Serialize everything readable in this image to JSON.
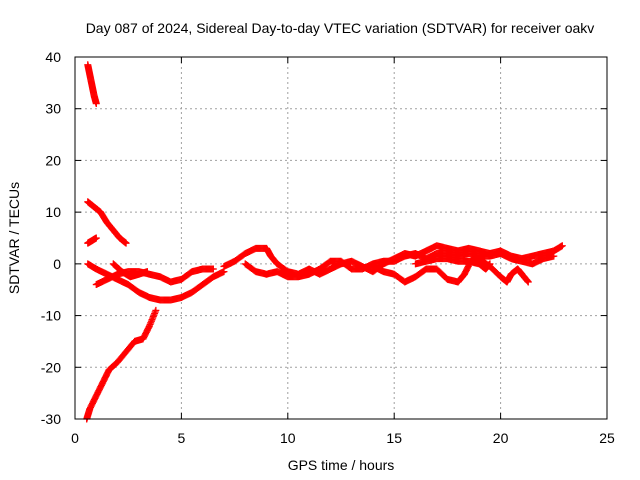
{
  "chart_data": {
    "type": "scatter",
    "title": "Day 087 of 2024, Sidereal Day-to-day VTEC variation (SDTVAR) for receiver oakv",
    "xlabel": "GPS time / hours",
    "ylabel": "SDTVAR / TECUs",
    "xlim": [
      0,
      25
    ],
    "ylim": [
      -30,
      40
    ],
    "xticks": [
      0,
      5,
      10,
      15,
      20,
      25
    ],
    "yticks": [
      -30,
      -20,
      -10,
      0,
      10,
      20,
      30,
      40
    ],
    "xtick_labels": [
      "0",
      "5",
      "10",
      "15",
      "20",
      "25"
    ],
    "ytick_labels": [
      "-30",
      "-20",
      "-10",
      "0",
      "10",
      "20",
      "30",
      "40"
    ],
    "grid": true,
    "marker": "+",
    "color": "#ff0000",
    "series": [
      {
        "name": "arc-high-start",
        "points": [
          [
            0.6,
            38.5
          ],
          [
            0.7,
            36.5
          ],
          [
            0.8,
            34.5
          ],
          [
            0.9,
            32.5
          ],
          [
            1.0,
            31.0
          ]
        ]
      },
      {
        "name": "arc-rising",
        "points": [
          [
            0.55,
            -30
          ],
          [
            0.7,
            -28
          ],
          [
            1.0,
            -25.5
          ],
          [
            1.3,
            -23
          ],
          [
            1.6,
            -20.5
          ],
          [
            2.0,
            -19
          ],
          [
            2.4,
            -17
          ],
          [
            2.8,
            -15
          ],
          [
            3.2,
            -14.5
          ],
          [
            3.5,
            -12
          ],
          [
            3.8,
            -9
          ]
        ]
      },
      {
        "name": "arc-descend-10",
        "points": [
          [
            0.6,
            12
          ],
          [
            0.9,
            11
          ],
          [
            1.2,
            10
          ],
          [
            1.5,
            8
          ],
          [
            1.8,
            6.5
          ],
          [
            2.1,
            5
          ],
          [
            2.4,
            4
          ]
        ]
      },
      {
        "name": "arc-small-4",
        "points": [
          [
            0.6,
            4
          ],
          [
            0.8,
            4.5
          ],
          [
            1.0,
            5
          ]
        ]
      },
      {
        "name": "arc-low-dip",
        "points": [
          [
            0.6,
            0
          ],
          [
            1.0,
            -1
          ],
          [
            1.5,
            -2
          ],
          [
            2.0,
            -3
          ],
          [
            2.5,
            -4
          ],
          [
            3.0,
            -5.5
          ],
          [
            3.5,
            -6.5
          ],
          [
            4.0,
            -7
          ],
          [
            4.5,
            -7
          ],
          [
            5.0,
            -6.5
          ],
          [
            5.5,
            -5.5
          ],
          [
            6.0,
            -4
          ],
          [
            6.5,
            -2.5
          ],
          [
            7.0,
            -1.5
          ]
        ]
      },
      {
        "name": "arc-mid",
        "points": [
          [
            1.0,
            -4
          ],
          [
            1.5,
            -3
          ],
          [
            2.0,
            -2
          ],
          [
            2.5,
            -1.5
          ],
          [
            3.0,
            -1.5
          ],
          [
            3.5,
            -2
          ],
          [
            4.0,
            -2.5
          ],
          [
            4.5,
            -3.5
          ],
          [
            5.0,
            -3
          ],
          [
            5.5,
            -1.5
          ],
          [
            6.0,
            -1
          ],
          [
            6.5,
            -1
          ]
        ]
      },
      {
        "name": "arc-upper-mid",
        "points": [
          [
            1.8,
            0
          ],
          [
            2.2,
            -1.5
          ],
          [
            2.6,
            -2.5
          ],
          [
            3.0,
            -2
          ],
          [
            3.4,
            -1.5
          ]
        ]
      },
      {
        "name": "arc-day-a",
        "points": [
          [
            7.0,
            -0.5
          ],
          [
            7.5,
            0.5
          ],
          [
            8.0,
            2
          ],
          [
            8.5,
            3
          ],
          [
            9.0,
            3
          ],
          [
            9.2,
            1.5
          ],
          [
            9.5,
            0
          ],
          [
            10.0,
            -1.5
          ],
          [
            10.5,
            -2
          ],
          [
            11.0,
            -1
          ],
          [
            11.5,
            -2
          ],
          [
            12.0,
            -1
          ],
          [
            12.5,
            0
          ],
          [
            13.0,
            0.5
          ],
          [
            13.5,
            -0.5
          ],
          [
            14.0,
            -1.5
          ],
          [
            14.5,
            0
          ],
          [
            15.0,
            1
          ],
          [
            15.5,
            2
          ],
          [
            16.0,
            1.5
          ],
          [
            16.5,
            2.5
          ],
          [
            17.0,
            3.5
          ],
          [
            17.5,
            3
          ],
          [
            18.0,
            2.5
          ],
          [
            18.5,
            3
          ],
          [
            19.0,
            2.5
          ],
          [
            19.5,
            2
          ],
          [
            20.0,
            2.5
          ],
          [
            20.5,
            1.5
          ],
          [
            21.0,
            1
          ],
          [
            21.5,
            1.5
          ],
          [
            22.0,
            2
          ],
          [
            22.5,
            2.5
          ],
          [
            22.9,
            3.5
          ]
        ]
      },
      {
        "name": "arc-day-b",
        "points": [
          [
            8.0,
            0
          ],
          [
            8.5,
            -1.5
          ],
          [
            9.0,
            -2
          ],
          [
            9.5,
            -1.5
          ],
          [
            10.0,
            -2.5
          ],
          [
            10.5,
            -2.5
          ],
          [
            11.0,
            -2
          ],
          [
            11.5,
            -1
          ],
          [
            12.0,
            0.5
          ],
          [
            12.5,
            0.5
          ],
          [
            13.0,
            -1
          ],
          [
            13.5,
            -1
          ],
          [
            14.0,
            0
          ],
          [
            14.5,
            0.5
          ],
          [
            15.0,
            0.5
          ],
          [
            15.5,
            1.5
          ],
          [
            16.0,
            2
          ],
          [
            16.5,
            1
          ],
          [
            17.0,
            2
          ],
          [
            17.5,
            2
          ],
          [
            18.0,
            1.5
          ],
          [
            18.5,
            2
          ],
          [
            19.0,
            1.5
          ],
          [
            19.5,
            1.5
          ],
          [
            20.0,
            2
          ],
          [
            20.5,
            1
          ],
          [
            21.0,
            0.5
          ],
          [
            21.5,
            0
          ],
          [
            22.0,
            1
          ],
          [
            22.5,
            1.5
          ]
        ]
      },
      {
        "name": "arc-day-c",
        "points": [
          [
            14.0,
            -0.5
          ],
          [
            14.5,
            -1.5
          ],
          [
            15.0,
            -2
          ],
          [
            15.5,
            -3.5
          ],
          [
            16.0,
            -2.5
          ],
          [
            16.5,
            -1
          ],
          [
            17.0,
            -1
          ],
          [
            17.5,
            -3
          ],
          [
            18.0,
            -3.5
          ],
          [
            18.3,
            -2
          ],
          [
            18.6,
            0.5
          ],
          [
            19.0,
            1
          ],
          [
            19.5,
            -0.5
          ],
          [
            20.0,
            -2.5
          ],
          [
            20.3,
            -3.5
          ],
          [
            20.5,
            -2
          ],
          [
            20.8,
            -1
          ],
          [
            21.0,
            -2
          ],
          [
            21.3,
            -3.5
          ]
        ]
      },
      {
        "name": "arc-day-d",
        "points": [
          [
            16.0,
            0
          ],
          [
            16.5,
            0.5
          ],
          [
            17.0,
            1
          ],
          [
            17.5,
            1
          ],
          [
            18.0,
            0.5
          ],
          [
            18.5,
            0.5
          ],
          [
            19.0,
            0
          ],
          [
            19.3,
            -1
          ],
          [
            19.5,
            0
          ]
        ]
      }
    ]
  }
}
